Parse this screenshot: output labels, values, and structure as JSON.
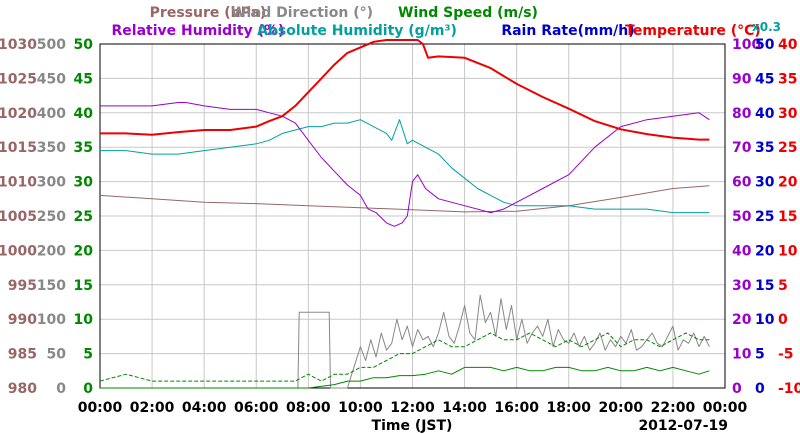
{
  "chart_data": {
    "type": "line",
    "date": "2012-07-19",
    "xlabel": "Time (JST)",
    "x_ticks": [
      "00:00",
      "02:00",
      "04:00",
      "06:00",
      "08:00",
      "10:00",
      "12:00",
      "14:00",
      "16:00",
      "18:00",
      "20:00",
      "22:00",
      "00:00"
    ],
    "xlim_hours": [
      0,
      24
    ],
    "grid": true,
    "legend_row1": [
      {
        "text": "Pressure (hPa)",
        "color": "#996666"
      },
      {
        "text": "Wind Direction (°)",
        "color": "#888888"
      },
      {
        "text": "Wind Speed (m/s)",
        "color": "#008800"
      }
    ],
    "legend_row2": [
      {
        "text": "Relative Humidity (%)",
        "color": "#9900cc"
      },
      {
        "text": "Absolute Humidity (g/m³)",
        "color": "#00a0a0"
      },
      {
        "text": "Rain Rate(mm/h)",
        "color": "#0000cc"
      },
      {
        "text": "Temperature (°C)",
        "color": "#ee0000"
      }
    ],
    "note_right": {
      "text": "x0.3",
      "color": "#00a0a0"
    },
    "axes": {
      "pressure": {
        "color": "#996666",
        "ticks": [
          "1030",
          "1025",
          "1020",
          "1015",
          "1010",
          "1005",
          "1000",
          "995",
          "990",
          "985",
          "980"
        ]
      },
      "wind_direction": {
        "color": "#888888",
        "ticks": [
          "500",
          "450",
          "400",
          "350",
          "300",
          "250",
          "200",
          "150",
          "100",
          "50",
          "0"
        ]
      },
      "wind_speed": {
        "color": "#008800",
        "ticks": [
          "50",
          "45",
          "40",
          "35",
          "30",
          "25",
          "20",
          "15",
          "10",
          "5",
          "0"
        ]
      },
      "relative_humidity": {
        "color": "#9900cc",
        "ticks": [
          "100",
          "90",
          "80",
          "70",
          "60",
          "50",
          "40",
          "30",
          "20",
          "10",
          "0"
        ]
      },
      "rain_rate": {
        "color": "#0000cc",
        "ticks": [
          "50",
          "45",
          "40",
          "35",
          "30",
          "25",
          "20",
          "15",
          "10",
          "5",
          "0"
        ]
      },
      "temperature": {
        "color": "#ee0000",
        "ticks": [
          "40",
          "35",
          "30",
          "25",
          "20",
          "15",
          "10",
          "5",
          "0",
          "-5",
          "-10"
        ]
      }
    },
    "series": [
      {
        "name": "Temperature",
        "axis": "temperature",
        "color": "#ee0000",
        "ylim": [
          -10,
          40
        ],
        "x": [
          0,
          1,
          2,
          3,
          4,
          5,
          6,
          6.5,
          7,
          7.5,
          8,
          8.5,
          9,
          9.5,
          10,
          10.5,
          11,
          11.5,
          12,
          12.2,
          12.4,
          12.6,
          13,
          14,
          15,
          16,
          17,
          18,
          19,
          20,
          21,
          22,
          23,
          23.4
        ],
        "y": [
          27,
          27,
          26.8,
          27.2,
          27.5,
          27.5,
          28,
          28.8,
          29.5,
          31,
          33,
          35,
          37,
          38.7,
          39.5,
          40.3,
          41.5,
          42.4,
          43,
          42.3,
          40,
          38,
          38.2,
          38,
          36.5,
          34.2,
          32.3,
          30.6,
          28.8,
          27.6,
          26.9,
          26.4,
          26.1,
          26.1
        ],
        "stroke_width": 2
      },
      {
        "name": "Relative Humidity",
        "axis": "relative_humidity",
        "color": "#9900cc",
        "ylim": [
          0,
          100
        ],
        "x": [
          0,
          1,
          2,
          3,
          3.3,
          4,
          5,
          6,
          6.5,
          7,
          7.5,
          8,
          8.5,
          9,
          9.5,
          10,
          10.3,
          10.6,
          11,
          11.3,
          11.6,
          11.8,
          12,
          12.2,
          12.5,
          13,
          14,
          15,
          15.5,
          16,
          16.5,
          17,
          18,
          19,
          20,
          21,
          22,
          23,
          23.4
        ],
        "y": [
          82,
          82,
          82,
          83,
          83,
          82,
          81,
          81,
          80,
          79,
          77,
          72,
          67,
          63,
          59,
          56,
          52,
          51,
          48,
          47,
          48,
          50,
          60,
          62,
          58,
          55,
          53,
          51,
          52,
          54,
          56,
          58,
          62,
          70,
          76,
          78,
          79,
          80,
          78
        ]
      },
      {
        "name": "Absolute Humidity",
        "axis": "relative_humidity",
        "color": "#00a0a0",
        "ylim": [
          0,
          100
        ],
        "x": [
          0,
          1,
          2,
          3,
          4,
          5,
          6,
          6.5,
          7,
          7.5,
          8,
          8.5,
          9,
          9.5,
          10,
          10.5,
          11,
          11.2,
          11.5,
          11.8,
          12,
          12.5,
          13,
          13.5,
          14,
          14.5,
          15,
          15.5,
          16,
          17,
          18,
          19,
          20,
          21,
          22,
          23,
          23.4
        ],
        "y": [
          69,
          69,
          68,
          68,
          69,
          70,
          71,
          72,
          74,
          75,
          76,
          76,
          77,
          77,
          78,
          76,
          74,
          72,
          78,
          71,
          72,
          70,
          68,
          64,
          61,
          58,
          56,
          54,
          53,
          53,
          53,
          52,
          52,
          52,
          51,
          51,
          51
        ]
      },
      {
        "name": "Pressure",
        "axis": "pressure",
        "color": "#996666",
        "ylim": [
          980,
          1030
        ],
        "x": [
          0,
          2,
          4,
          6,
          8,
          10,
          12,
          14,
          16,
          18,
          20,
          22,
          23.4
        ],
        "y": [
          1008,
          1007.5,
          1007,
          1006.8,
          1006.5,
          1006.2,
          1005.9,
          1005.6,
          1005.7,
          1006.5,
          1007.7,
          1009,
          1009.4
        ]
      },
      {
        "name": "Wind Direction",
        "axis": "wind_direction",
        "color": "#888888",
        "ylim": [
          0,
          500
        ],
        "x": [
          0,
          7.6,
          7.65,
          8.8,
          8.85,
          9.5,
          10,
          10.2,
          10.4,
          10.6,
          10.8,
          11,
          11.2,
          11.4,
          11.6,
          11.8,
          12,
          12.2,
          12.4,
          12.6,
          12.8,
          13,
          13.2,
          13.4,
          13.6,
          13.8,
          14,
          14.2,
          14.4,
          14.6,
          14.8,
          15,
          15.2,
          15.4,
          15.6,
          15.8,
          16,
          16.2,
          16.4,
          16.6,
          16.8,
          17,
          17.2,
          17.4,
          17.6,
          17.8,
          18,
          18.2,
          18.4,
          18.6,
          18.8,
          19,
          19.2,
          19.4,
          19.6,
          19.8,
          20,
          20.2,
          20.4,
          20.6,
          20.8,
          21,
          21.2,
          21.4,
          21.6,
          21.8,
          22,
          22.2,
          22.4,
          22.6,
          22.8,
          23,
          23.2,
          23.4
        ],
        "y": [
          0,
          0,
          110,
          110,
          0,
          0,
          60,
          40,
          70,
          45,
          80,
          55,
          65,
          100,
          70,
          90,
          60,
          85,
          70,
          75,
          60,
          80,
          110,
          75,
          65,
          90,
          120,
          80,
          70,
          135,
          95,
          110,
          75,
          130,
          85,
          120,
          70,
          100,
          65,
          80,
          90,
          75,
          100,
          60,
          85,
          70,
          65,
          80,
          60,
          75,
          55,
          65,
          80,
          55,
          70,
          60,
          75,
          65,
          85,
          55,
          60,
          70,
          80,
          65,
          60,
          75,
          90,
          55,
          70,
          65,
          80,
          60,
          75,
          60
        ]
      },
      {
        "name": "Wind Speed max",
        "axis": "wind_speed",
        "color": "#008800",
        "ylim": [
          0,
          50
        ],
        "dashed": true,
        "x": [
          0,
          1,
          2,
          3,
          4,
          5,
          6,
          7,
          7.5,
          8,
          8.5,
          9,
          9.5,
          10,
          10.5,
          11,
          11.5,
          12,
          12.5,
          13,
          13.5,
          14,
          14.5,
          15,
          15.5,
          16,
          16.5,
          17,
          17.5,
          18,
          18.5,
          19,
          19.5,
          20,
          20.5,
          21,
          21.5,
          22,
          22.5,
          23,
          23.4
        ],
        "y": [
          1,
          2,
          1,
          1,
          1,
          1,
          1,
          1,
          1,
          2,
          1,
          2,
          2,
          3,
          3,
          4,
          5,
          5,
          6,
          7,
          6,
          6,
          7,
          8,
          7,
          7,
          8,
          7,
          6,
          7,
          6,
          7,
          8,
          6,
          7,
          7,
          6,
          7,
          8,
          7,
          7
        ]
      },
      {
        "name": "Wind Speed mean",
        "axis": "wind_speed",
        "color": "#008800",
        "ylim": [
          0,
          50
        ],
        "x": [
          0,
          2,
          4,
          6,
          7,
          8,
          9,
          9.5,
          10,
          10.5,
          11,
          11.5,
          12,
          12.5,
          13,
          13.5,
          14,
          14.5,
          15,
          15.5,
          16,
          16.5,
          17,
          17.5,
          18,
          18.5,
          19,
          19.5,
          20,
          20.5,
          21,
          21.5,
          22,
          22.5,
          23,
          23.4
        ],
        "y": [
          0,
          0,
          0,
          0,
          0,
          0,
          0.5,
          1,
          1,
          1.5,
          1.5,
          1.8,
          1.8,
          2,
          2.5,
          2,
          3,
          3,
          3,
          2.5,
          3,
          2.5,
          2.5,
          3,
          3,
          2.5,
          2.5,
          3,
          2.5,
          2.5,
          3,
          2.5,
          3,
          2.5,
          2,
          2.5
        ]
      }
    ]
  }
}
